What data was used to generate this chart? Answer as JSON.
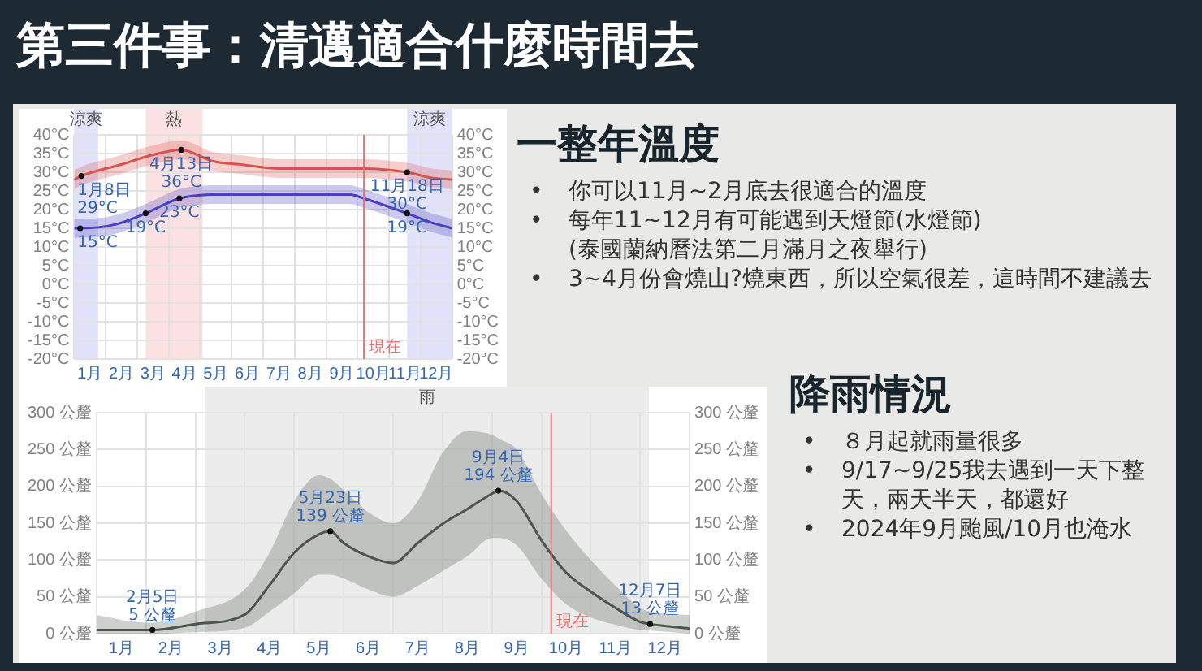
{
  "chart_data": [
    {
      "type": "other",
      "title": "第三件事：清邁適合什麼時間去"
    },
    {
      "type": "line",
      "xlim": [
        0,
        12
      ],
      "xticks": [
        {
          "value": 0,
          "label": null
        },
        {
          "value": 0.5,
          "label": "1月"
        },
        {
          "value": 1,
          "label": null
        },
        {
          "value": 1.5,
          "label": "2月"
        },
        {
          "value": 2,
          "label": null
        },
        {
          "value": 2.5,
          "label": "3月"
        },
        {
          "value": 3,
          "label": null
        },
        {
          "value": 3.5,
          "label": "4月"
        },
        {
          "value": 4,
          "label": null
        },
        {
          "value": 4.5,
          "label": "5月"
        },
        {
          "value": 5,
          "label": null
        },
        {
          "value": 5.5,
          "label": "6月"
        },
        {
          "value": 6,
          "label": null
        },
        {
          "value": 6.5,
          "label": "7月"
        },
        {
          "value": 7,
          "label": null
        },
        {
          "value": 7.5,
          "label": "8月"
        },
        {
          "value": 8,
          "label": null
        },
        {
          "value": 8.5,
          "label": "9月"
        },
        {
          "value": 9,
          "label": null
        },
        {
          "value": 9.5,
          "label": "10月"
        },
        {
          "value": 10,
          "label": null
        },
        {
          "value": 10.5,
          "label": "11月"
        },
        {
          "value": 11,
          "label": null
        },
        {
          "value": 11.5,
          "label": "12月"
        },
        {
          "value": 12,
          "label": null
        }
      ],
      "ylim": [
        -20,
        40
      ],
      "yticks": [
        {
          "value": -20,
          "label": "-20°C"
        },
        {
          "value": -15,
          "label": "-15°C"
        },
        {
          "value": -10,
          "label": "-10°C"
        },
        {
          "value": -5,
          "label": "-5°C"
        },
        {
          "value": 0,
          "label": "0°C"
        },
        {
          "value": 5,
          "label": "5°C"
        },
        {
          "value": 10,
          "label": "10°C"
        },
        {
          "value": 15,
          "label": "15°C"
        },
        {
          "value": 20,
          "label": "20°C"
        },
        {
          "value": 25,
          "label": "25°C"
        },
        {
          "value": 30,
          "label": "30°C"
        },
        {
          "value": 35,
          "label": "35°C"
        },
        {
          "value": 40,
          "label": "40°C"
        }
      ],
      "y2lim": [
        -20,
        40
      ],
      "y2ticks": [
        {
          "value": -20,
          "label": "-20°C"
        },
        {
          "value": -15,
          "label": "-15°C"
        },
        {
          "value": -10,
          "label": "-10°C"
        },
        {
          "value": -5,
          "label": "-5°C"
        },
        {
          "value": 0,
          "label": "0°C"
        },
        {
          "value": 5,
          "label": "5°C"
        },
        {
          "value": 10,
          "label": "10°C"
        },
        {
          "value": 15,
          "label": "15°C"
        },
        {
          "value": 20,
          "label": "20°C"
        },
        {
          "value": 25,
          "label": "25°C"
        },
        {
          "value": 30,
          "label": "30°C"
        },
        {
          "value": 35,
          "label": "35°C"
        },
        {
          "value": 40,
          "label": "40°C"
        }
      ],
      "grid": true,
      "series": [
        {
          "color": "#d9534f",
          "x": [
            0,
            0.23,
            1.46,
            2.43,
            3.4,
            4.38,
            5.35,
            6.48,
            7.46,
            8.43,
            9.2,
            10.57,
            11.35,
            12
          ],
          "values": [
            28,
            29,
            32,
            34.5,
            36,
            33,
            32,
            31,
            31,
            31,
            31,
            30,
            28.5,
            28
          ],
          "lower": [
            25.5,
            26.5,
            29.5,
            32,
            33.5,
            30.5,
            29.5,
            28.5,
            28.5,
            28.5,
            28.5,
            27.5,
            26,
            25.5
          ],
          "upper": [
            30.5,
            31.5,
            34.5,
            37,
            38.5,
            35.5,
            34.5,
            33.5,
            33.5,
            33.5,
            33.5,
            32.5,
            31,
            30.5
          ]
        },
        {
          "color": "#4a3fbf",
          "x": [
            0,
            0.19,
            1.3,
            2.27,
            3.34,
            4.38,
            5.5,
            6.5,
            7.5,
            8.76,
            9.2,
            10.57,
            11.35,
            12
          ],
          "values": [
            15,
            15,
            16,
            19,
            23,
            24,
            24,
            24,
            24,
            24,
            23,
            19,
            16.5,
            15
          ],
          "lower": [
            12.5,
            12.5,
            13.5,
            16.5,
            20.5,
            21.5,
            21.5,
            21.5,
            21.5,
            21.5,
            20.5,
            16.5,
            14,
            12.5
          ],
          "upper": [
            17.5,
            17.5,
            18.5,
            21.5,
            25.5,
            26.5,
            26.5,
            26.5,
            26.5,
            26.5,
            25.5,
            21.5,
            19,
            17.5
          ]
        }
      ],
      "bands": [
        {
          "axis": "x",
          "from": 0,
          "to": 0.76,
          "label": "涼爽",
          "color": "#e2e2fb"
        },
        {
          "axis": "x",
          "from": 2.27,
          "to": 4.08,
          "label": "熱",
          "color": "#fbe1e1"
        },
        {
          "axis": "x",
          "from": 10.57,
          "to": 12,
          "label": "涼爽",
          "color": "#e2e2fb"
        }
      ],
      "ref_lines": [
        {
          "axis": "x",
          "value": 9.2,
          "label": "現在",
          "color": "#e57373"
        }
      ],
      "annotations": [
        {
          "text": "1月8日\n29°C",
          "x": 0.23,
          "y": 29
        },
        {
          "text": "4月13日\n36°C",
          "x": 3.4,
          "y": 36
        },
        {
          "text": "11月18日\n30°C",
          "x": 10.57,
          "y": 30
        },
        {
          "text": "15°C",
          "x": 0.19,
          "y": 15
        },
        {
          "text": "19°C",
          "x": 2.27,
          "y": 19
        },
        {
          "text": "23°C",
          "x": 3.34,
          "y": 23
        },
        {
          "text": "19°C",
          "x": 10.57,
          "y": 19
        }
      ]
    },
    {
      "type": "other",
      "title": "一整年溫度",
      "annotations": [
        "•\t你可以11月~2月底去很適合的溫度",
        "•\t每年11~12月有可能遇到天燈節(水燈節)\n(泰國蘭納曆法第二月滿月之夜舉行)",
        "•\t3~4月份會燒山?燒東西，所以空氣很差，這時間不建議去"
      ]
    },
    {
      "type": "line",
      "xlim": [
        0,
        12
      ],
      "xticks": [
        {
          "value": 0,
          "label": null
        },
        {
          "value": 0.5,
          "label": "1月"
        },
        {
          "value": 1,
          "label": null
        },
        {
          "value": 1.5,
          "label": "2月"
        },
        {
          "value": 2,
          "label": null
        },
        {
          "value": 2.5,
          "label": "3月"
        },
        {
          "value": 3,
          "label": null
        },
        {
          "value": 3.5,
          "label": "4月"
        },
        {
          "value": 4,
          "label": null
        },
        {
          "value": 4.5,
          "label": "5月"
        },
        {
          "value": 5,
          "label": null
        },
        {
          "value": 5.5,
          "label": "6月"
        },
        {
          "value": 6,
          "label": null
        },
        {
          "value": 6.5,
          "label": "7月"
        },
        {
          "value": 7,
          "label": null
        },
        {
          "value": 7.5,
          "label": "8月"
        },
        {
          "value": 8,
          "label": null
        },
        {
          "value": 8.5,
          "label": "9月"
        },
        {
          "value": 9,
          "label": null
        },
        {
          "value": 9.5,
          "label": "10月"
        },
        {
          "value": 10,
          "label": null
        },
        {
          "value": 10.5,
          "label": "11月"
        },
        {
          "value": 11,
          "label": null
        },
        {
          "value": 11.5,
          "label": "12月"
        },
        {
          "value": 12,
          "label": null
        }
      ],
      "ylim": [
        0,
        300
      ],
      "yticks": [
        {
          "value": 0,
          "label": "0 公釐"
        },
        {
          "value": 50,
          "label": "50 公釐"
        },
        {
          "value": 100,
          "label": "100 公釐"
        },
        {
          "value": 150,
          "label": "150 公釐"
        },
        {
          "value": 200,
          "label": "200 公釐"
        },
        {
          "value": 250,
          "label": "250 公釐"
        },
        {
          "value": 300,
          "label": "300 公釐"
        }
      ],
      "y2lim": [
        0,
        300
      ],
      "y2ticks": [
        {
          "value": 0,
          "label": "0 公釐"
        },
        {
          "value": 50,
          "label": "50 公釐"
        },
        {
          "value": 100,
          "label": "100 公釐"
        },
        {
          "value": 150,
          "label": "150 公釐"
        },
        {
          "value": 200,
          "label": "200 公釐"
        },
        {
          "value": 250,
          "label": "250 公釐"
        },
        {
          "value": 300,
          "label": "300 公釐"
        }
      ],
      "grid": true,
      "series": [
        {
          "color": "#4d574d",
          "x": [
            0,
            1,
            1.13,
            2,
            3,
            3.5,
            4,
            4.5,
            4.73,
            5,
            5.5,
            6,
            6.5,
            7,
            7.5,
            8,
            8.13,
            8.5,
            9,
            9.5,
            10,
            10.5,
            11,
            11.2,
            12
          ],
          "values": [
            5,
            5,
            5,
            13,
            26,
            66,
            110,
            135,
            139,
            123,
            105,
            96,
            123,
            149,
            169,
            190,
            194,
            180,
            127,
            83,
            57,
            35,
            16,
            13,
            7
          ],
          "lower": [
            0,
            0,
            0,
            2,
            8,
            30,
            55,
            80,
            80,
            75,
            60,
            50,
            65,
            85,
            105,
            130,
            130,
            120,
            75,
            40,
            22,
            12,
            5,
            4,
            0
          ],
          "upper": [
            25,
            15,
            15,
            30,
            60,
            110,
            180,
            215,
            210,
            195,
            165,
            150,
            180,
            245,
            275,
            270,
            265,
            250,
            190,
            140,
            100,
            65,
            35,
            30,
            25
          ]
        }
      ],
      "bands": [
        {
          "axis": "x",
          "from": 2.19,
          "to": 11.18,
          "label": "雨",
          "color": "#ececec"
        }
      ],
      "ref_lines": [
        {
          "axis": "x",
          "value": 9.2,
          "label": "現在",
          "color": "#e57373"
        }
      ],
      "annotations": [
        {
          "text": "2月5日\n5 公釐",
          "x": 1.13,
          "y": 5
        },
        {
          "text": "5月23日\n139 公釐",
          "x": 4.73,
          "y": 139
        },
        {
          "text": "9月4日\n194 公釐",
          "x": 8.13,
          "y": 194
        },
        {
          "text": "12月7日\n13 公釐",
          "x": 11.2,
          "y": 13
        }
      ]
    },
    {
      "type": "other",
      "title": "降雨情況",
      "annotations": [
        "•\t８月起就雨量很多",
        "•\t9/17~9/25我去遇到一天下整天，兩天半天，都還好",
        "•\t2024年9月颱風/10月也淹水"
      ]
    }
  ]
}
